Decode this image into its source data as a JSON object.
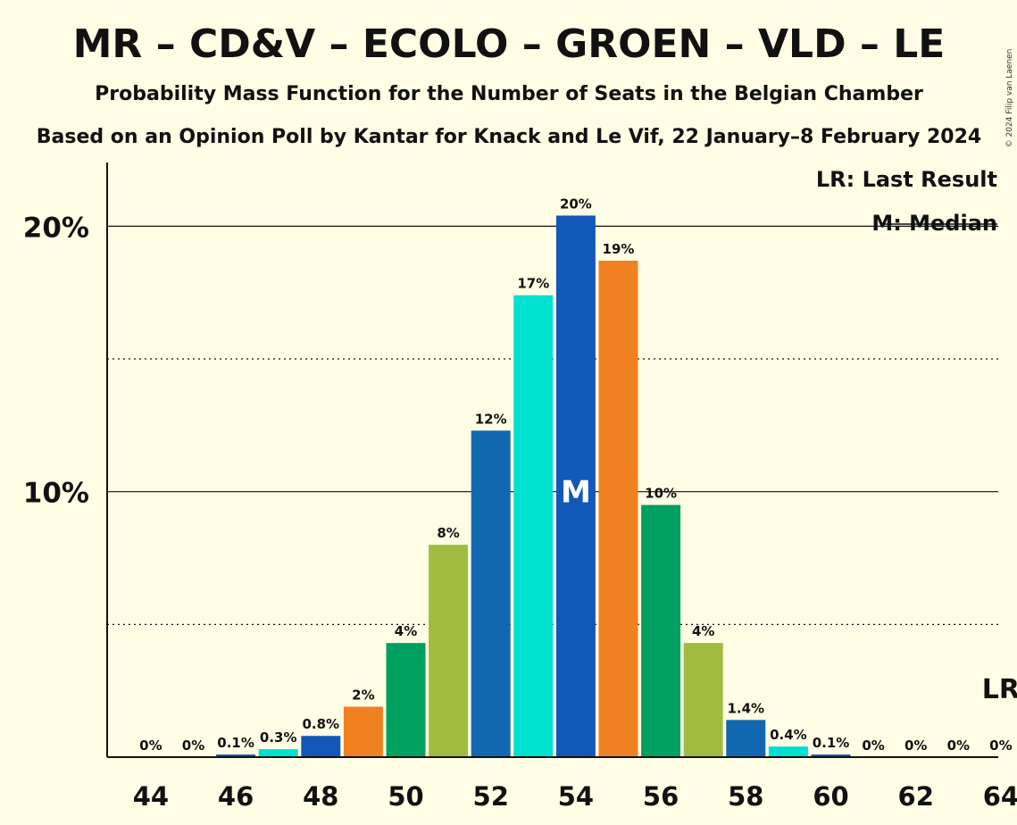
{
  "title": "MR – CD&V – ECOLO – GROEN – VLD – LE",
  "subtitle1": "Probability Mass Function for the Number of Seats in the Belgian Chamber",
  "subtitle2": "Based on an Opinion Poll by Kantar for Knack and Le Vif, 22 January–8 February 2024",
  "copyright": "© 2024 Filip van Laenen",
  "legend": {
    "last_result": "LR: Last Result",
    "median": "M: Median"
  },
  "lr_marker": "LR",
  "median_marker": "M",
  "chart_data": {
    "type": "bar",
    "title": "MR – CD&V – ECOLO – GROEN – VLD – LE",
    "xlabel": "",
    "ylabel": "",
    "x": [
      44,
      45,
      46,
      47,
      48,
      49,
      50,
      51,
      52,
      53,
      54,
      55,
      56,
      57,
      58,
      59,
      60,
      61,
      62,
      63,
      64
    ],
    "values": [
      0,
      0,
      0.1,
      0.3,
      0.8,
      1.9,
      4.3,
      8.0,
      12.3,
      17.4,
      20.4,
      18.7,
      9.5,
      4.3,
      1.4,
      0.4,
      0.1,
      0,
      0,
      0,
      0
    ],
    "labels": [
      "0%",
      "0%",
      "0.1%",
      "0.3%",
      "0.8%",
      "2%",
      "4%",
      "8%",
      "12%",
      "17%",
      "20%",
      "19%",
      "10%",
      "4%",
      "1.4%",
      "0.4%",
      "0.1%",
      "0%",
      "0%",
      "0%",
      "0%"
    ],
    "colors": [
      "#1158B8",
      "#00E0D0",
      "#1158B8",
      "#00E0D0",
      "#1158B8",
      "#F08020",
      "#00A060",
      "#A0BC40",
      "#1168B0",
      "#00E0D0",
      "#1158B8",
      "#F08020",
      "#00A060",
      "#A0BC40",
      "#1168B0",
      "#00E0D0",
      "#1158B8",
      "#F08020",
      "#00A060",
      "#A0BC40",
      "#1168B0"
    ],
    "xtick_labels": [
      "44",
      "46",
      "48",
      "50",
      "52",
      "54",
      "56",
      "58",
      "60",
      "62",
      "64"
    ],
    "ytick_labels": [
      "10%",
      "20%"
    ],
    "ylim": [
      0,
      22.4
    ],
    "solid_gridlines": [
      10,
      20
    ],
    "dotted_gridlines": [
      5,
      15
    ],
    "median_seats": 54,
    "last_result_seats": 64
  }
}
